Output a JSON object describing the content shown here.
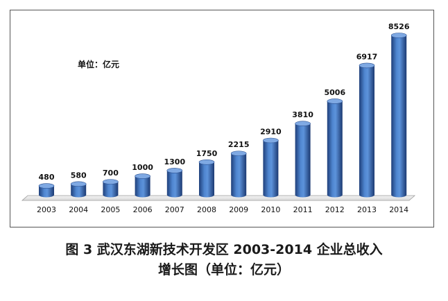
{
  "chart_data": {
    "type": "bar",
    "unit_label": "单位：亿元",
    "categories": [
      "2003",
      "2004",
      "2005",
      "2006",
      "2007",
      "2008",
      "2009",
      "2010",
      "2011",
      "2012",
      "2013",
      "2014"
    ],
    "values": [
      480,
      580,
      700,
      1000,
      1300,
      1750,
      2215,
      2910,
      3810,
      5006,
      6917,
      8526
    ],
    "data_labels": [
      "480",
      "580",
      "700",
      "1000",
      "1300",
      "1750",
      "2215",
      "2910",
      "3810",
      "5006",
      "6917",
      "8526"
    ],
    "bar_color": "#3a6bb5",
    "grid": false,
    "legend": "none"
  },
  "caption": {
    "line1": "图 3 武汉东湖新技术开发区 2003-2014 企业总收入",
    "line2": "增长图（单位：亿元）"
  }
}
